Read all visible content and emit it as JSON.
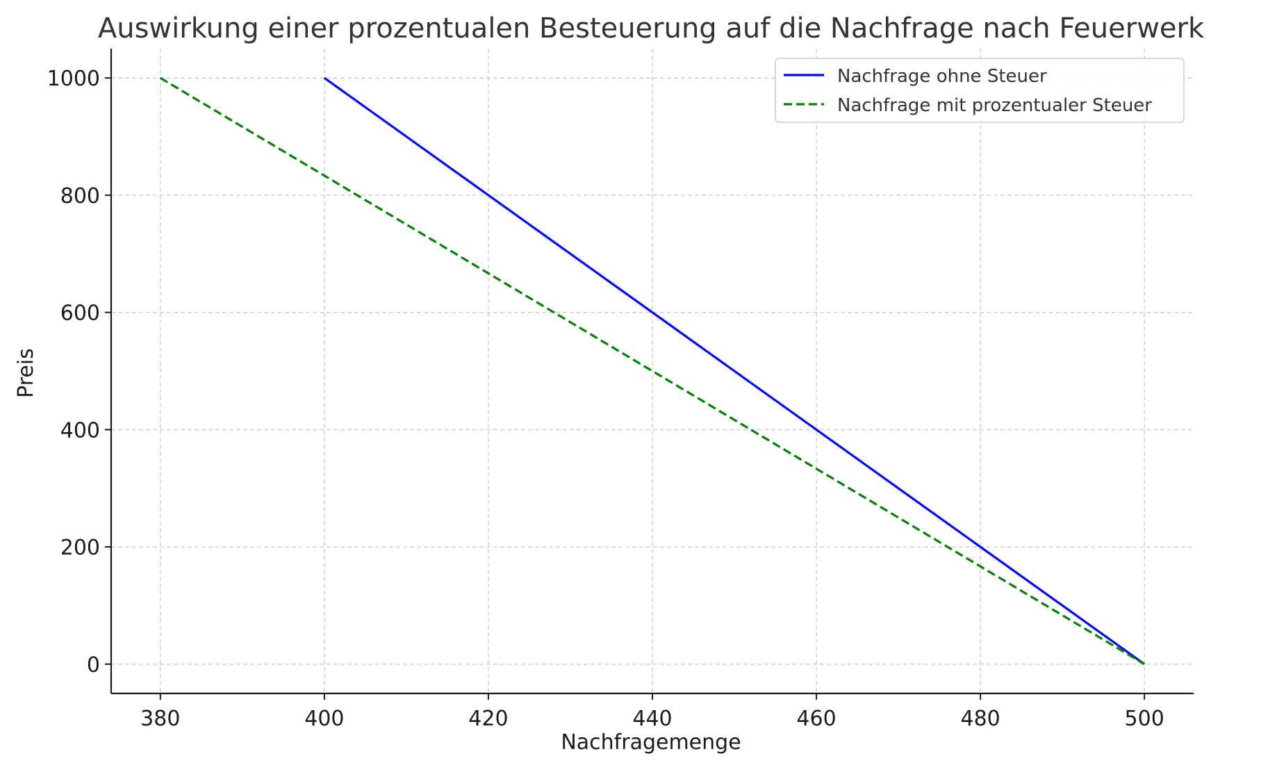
{
  "chart_data": {
    "type": "line",
    "title": "Auswirkung einer prozentualen Besteuerung auf die Nachfrage nach Feuerwerk",
    "xlabel": "Nachfragemenge",
    "ylabel": "Preis",
    "xlim": [
      374,
      506
    ],
    "ylim": [
      -50,
      1050
    ],
    "xticks": [
      380,
      400,
      420,
      440,
      460,
      480,
      500
    ],
    "yticks": [
      0,
      200,
      400,
      600,
      800,
      1000
    ],
    "grid": true,
    "legend_position": "top-right",
    "series": [
      {
        "name": "Nachfrage ohne Steuer",
        "color": "#0000ff",
        "style": "solid",
        "x": [
          400,
          500
        ],
        "y": [
          1000,
          0
        ]
      },
      {
        "name": "Nachfrage mit prozentualer Steuer",
        "color": "#008000",
        "style": "dashed",
        "x": [
          380,
          500
        ],
        "y": [
          1000,
          0
        ]
      }
    ]
  }
}
